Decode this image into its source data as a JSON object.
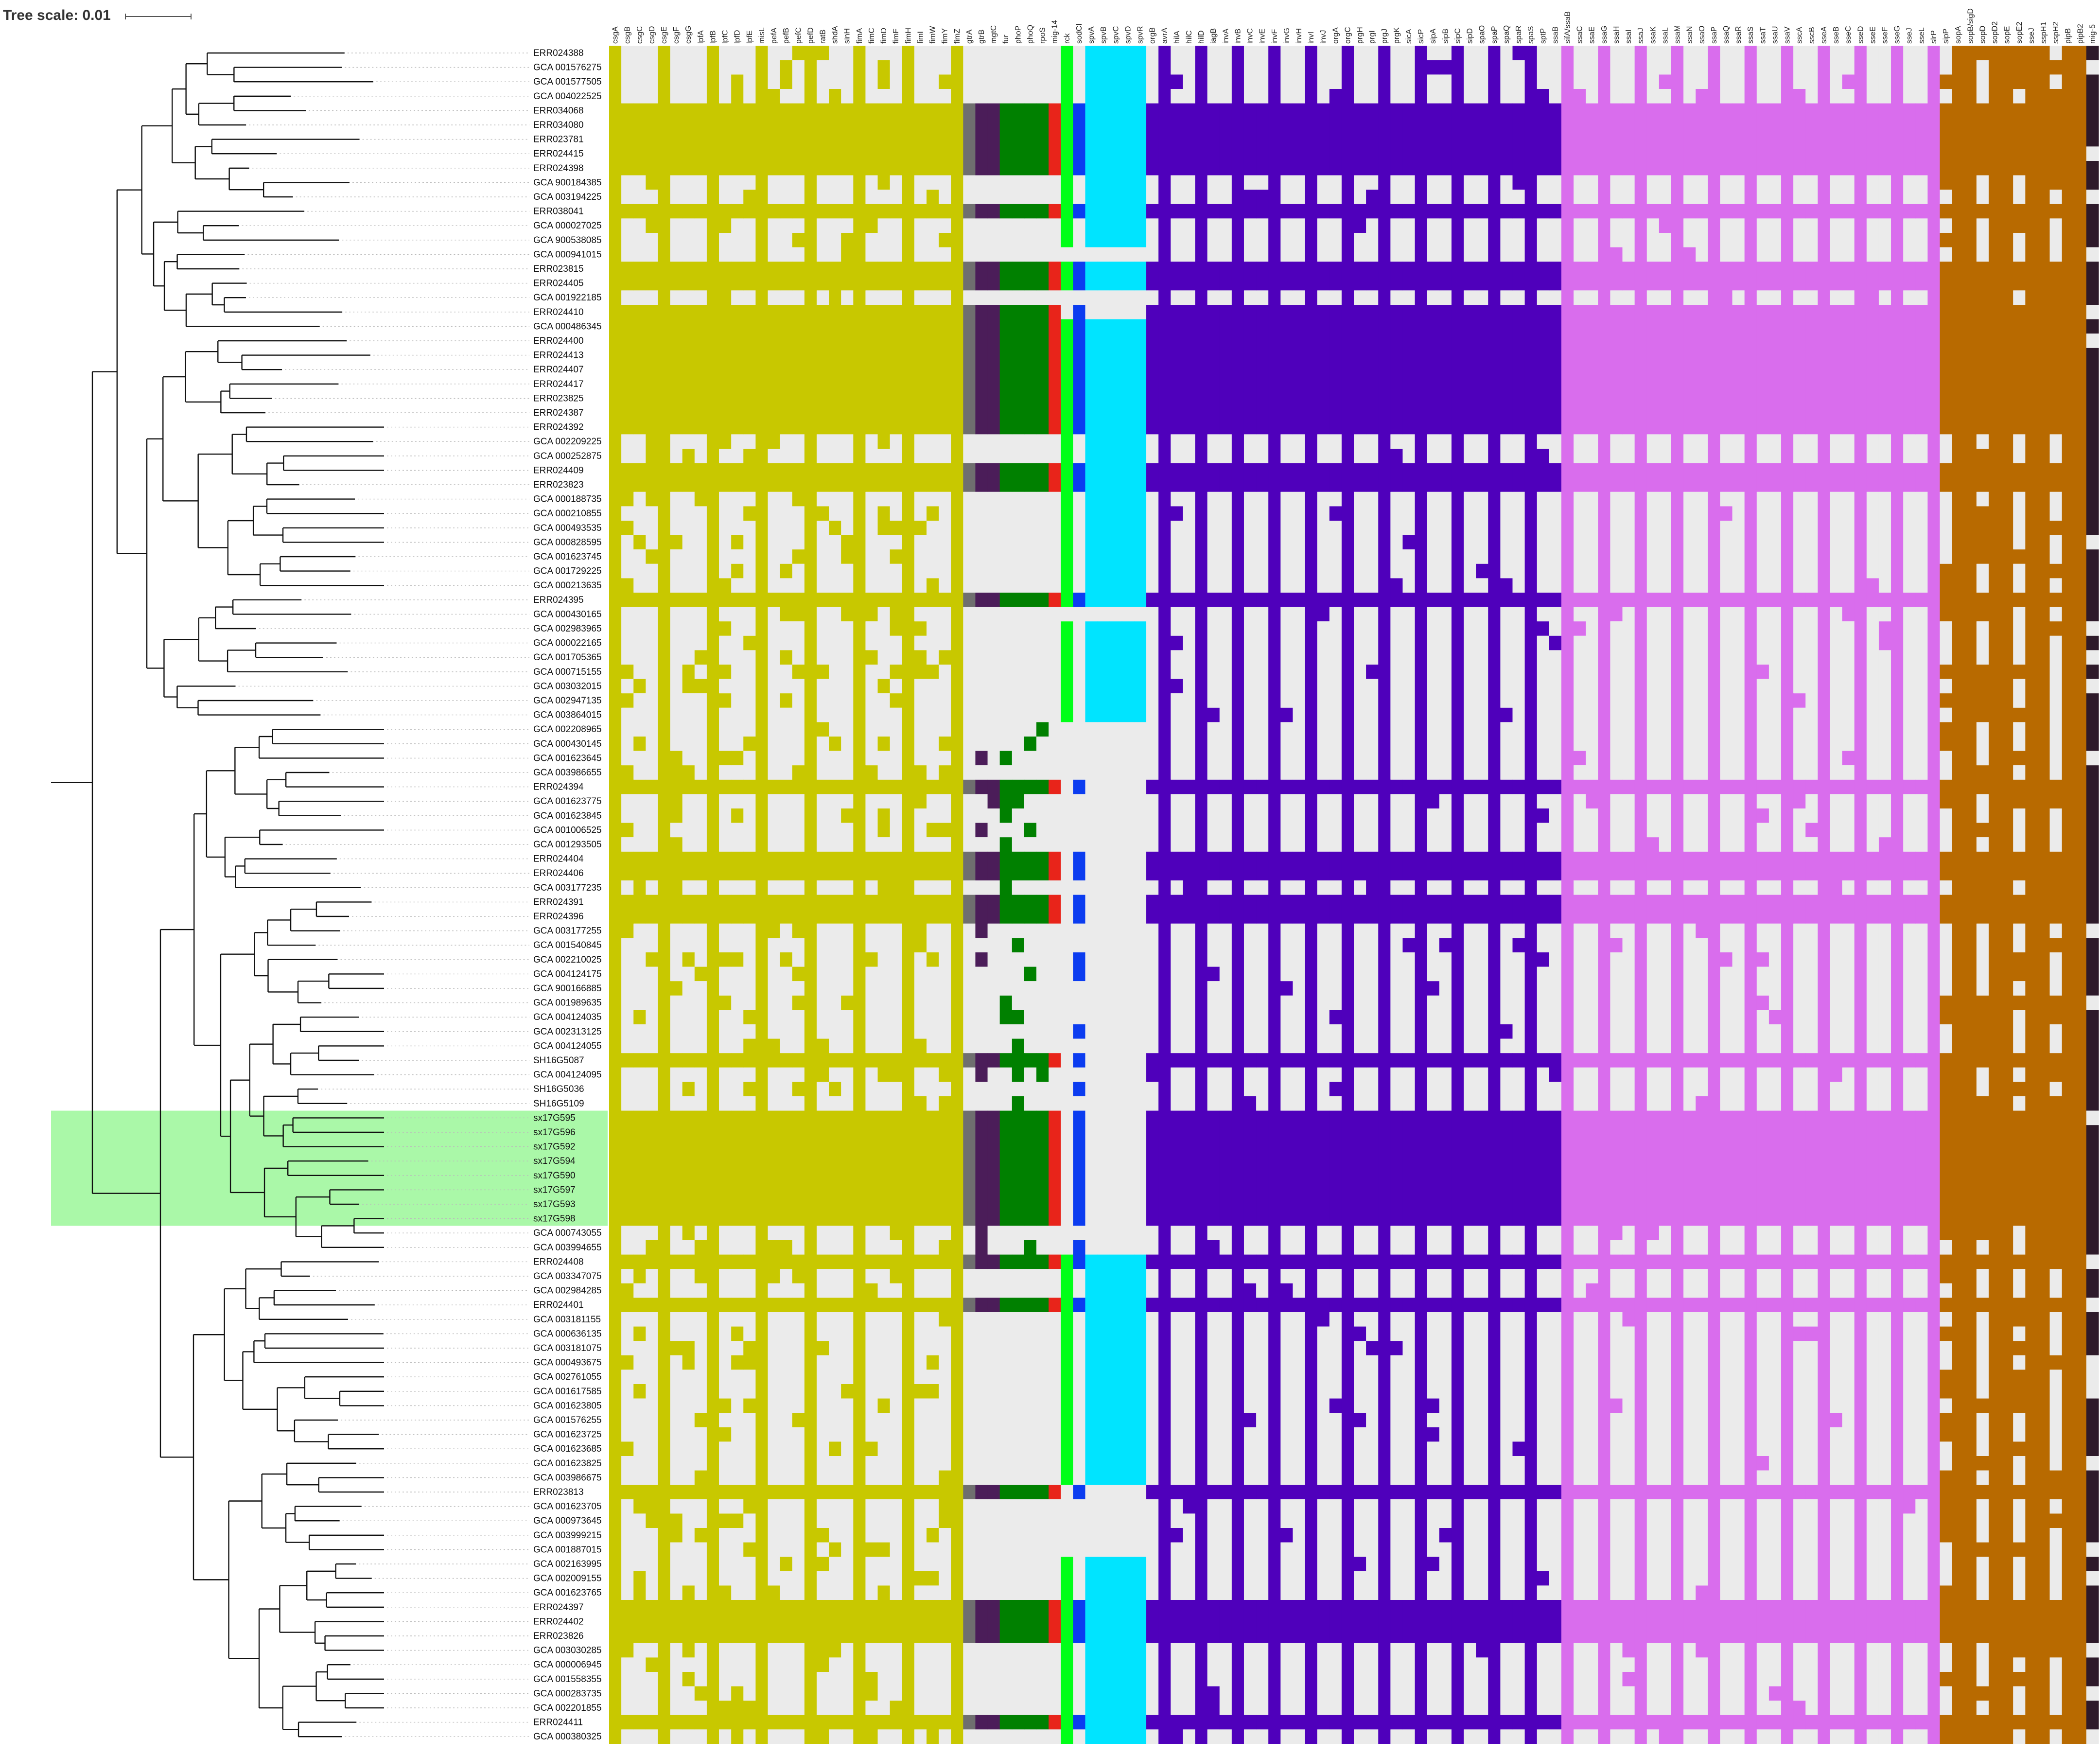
{
  "scale": {
    "label": "Tree scale: 0.01"
  },
  "colors": {
    "absent": "#ebebeb",
    "highlight": "#aaf8a8",
    "tree": "#111111",
    "dotted": "#bbbbbb"
  },
  "taxa": [
    "ERR024388",
    "GCA 001576275",
    "GCA 001577505",
    "GCA 004022525",
    "ERR034068",
    "ERR034080",
    "ERR023781",
    "ERR024415",
    "ERR024398",
    "GCA 900184385",
    "GCA 003194225",
    "ERR038041",
    "GCA 000027025",
    "GCA 900538085",
    "GCA 000941015",
    "ERR023815",
    "ERR024405",
    "GCA 001922185",
    "ERR024410",
    "GCA 000486345",
    "ERR024400",
    "ERR024413",
    "ERR024407",
    "ERR024417",
    "ERR023825",
    "ERR024387",
    "ERR024392",
    "GCA 002209225",
    "GCA 000252875",
    "ERR024409",
    "ERR023823",
    "GCA 000188735",
    "GCA 000210855",
    "GCA 000493535",
    "GCA 000828595",
    "GCA 001623745",
    "GCA 001729225",
    "GCA 000213635",
    "ERR024395",
    "GCA 000430165",
    "GCA 002983965",
    "GCA 000022165",
    "GCA 001705365",
    "GCA 000715155",
    "GCA 003032015",
    "GCA 002947135",
    "GCA 003864015",
    "GCA 002208965",
    "GCA 000430145",
    "GCA 001623645",
    "GCA 003986655",
    "ERR024394",
    "GCA 001623775",
    "GCA 001623845",
    "GCA 001006525",
    "GCA 001293505",
    "ERR024404",
    "ERR024406",
    "GCA 003177235",
    "ERR024391",
    "ERR024396",
    "GCA 003177255",
    "GCA 001540845",
    "GCA 002210025",
    "GCA 004124175",
    "GCA 900166885",
    "GCA 001989635",
    "GCA 004124035",
    "GCA 002313125",
    "GCA 004124055",
    "SH16G5087",
    "GCA 004124095",
    "SH16G5036",
    "SH16G5109",
    "sx17G595",
    "sx17G596",
    "sx17G592",
    "sx17G594",
    "sx17G590",
    "sx17G597",
    "sx17G593",
    "sx17G598",
    "GCA 000743055",
    "GCA 003994655",
    "ERR024408",
    "GCA 003347075",
    "GCA 002984285",
    "ERR024401",
    "GCA 003181155",
    "GCA 000636135",
    "GCA 003181075",
    "GCA 000493675",
    "GCA 002761055",
    "GCA 001617585",
    "GCA 001623805",
    "GCA 001576255",
    "GCA 001623725",
    "GCA 001623685",
    "GCA 001623825",
    "GCA 003986675",
    "ERR023813",
    "GCA 001623705",
    "GCA 000973645",
    "GCA 003999215",
    "GCA 001887015",
    "GCA 002163995",
    "GCA 002009155",
    "GCA 001623765",
    "ERR024397",
    "ERR024402",
    "ERR023826",
    "GCA 003030285",
    "GCA 000006945",
    "GCA 001558355",
    "GCA 000283735",
    "GCA 002201855",
    "ERR024411",
    "GCA 000380325"
  ],
  "highlighted_taxa": [
    "sx17G595",
    "sx17G596",
    "sx17G592",
    "sx17G594",
    "sx17G590",
    "sx17G597",
    "sx17G593",
    "sx17G598"
  ],
  "groups": [
    {
      "color": "#c8c800",
      "genes": [
        "csgA",
        "csgB",
        "csgC",
        "csgD",
        "csgE",
        "csgF",
        "csgG",
        "lpfA",
        "lpfB",
        "lpfC",
        "lpfD",
        "lpfE",
        "misL",
        "pefA",
        "pefB",
        "pefC",
        "pefD",
        "ratB",
        "shdA",
        "sinH",
        "fimA",
        "fimC",
        "fimD",
        "fimF",
        "fimH",
        "fimI",
        "fimW",
        "fimY",
        "fimZ"
      ]
    },
    {
      "color": "#6f6f6f",
      "genes": [
        "gtrA"
      ]
    },
    {
      "color": "#4b1d59",
      "genes": [
        "gtrB",
        "mgtC"
      ]
    },
    {
      "color": "#008000",
      "genes": [
        "fur",
        "phoP",
        "phoQ",
        "rpoS"
      ]
    },
    {
      "color": "#e8241a",
      "genes": [
        "mig-14"
      ]
    },
    {
      "color": "#00ff18",
      "genes": [
        "rck"
      ]
    },
    {
      "color": "#0b3cf0",
      "genes": [
        "sodCI"
      ]
    },
    {
      "color": "#00e4ff",
      "genes": [
        "spvA",
        "spvB",
        "spvC",
        "spvD",
        "spvR"
      ]
    },
    {
      "color": "#4f00bb",
      "genes": [
        "orgB",
        "avrA",
        "hilA",
        "hilC",
        "hilD",
        "iagB",
        "invA",
        "invB",
        "invC",
        "invE",
        "invF",
        "invG",
        "invH",
        "invI",
        "invJ",
        "orgA",
        "orgC",
        "prgH",
        "prgI",
        "prgJ",
        "prgK",
        "sicA",
        "sicP",
        "sipA",
        "sipB",
        "sipC",
        "sipD",
        "spaO",
        "spaP",
        "spaQ",
        "spaR",
        "spaS",
        "sptP",
        "ssaB"
      ]
    },
    {
      "color": "#d96ded",
      "genes": [
        "sifA/ssaB",
        "ssaC",
        "ssaE",
        "ssaG",
        "ssaH",
        "ssaI",
        "ssaJ",
        "ssaK",
        "ssaL",
        "ssaM",
        "ssaN",
        "ssaO",
        "ssaP",
        "ssaQ",
        "ssaR",
        "ssaS",
        "ssaT",
        "ssaU",
        "ssaV",
        "sscA",
        "sscB",
        "sseA",
        "sseB",
        "sseC",
        "sseD",
        "sseE",
        "sseF",
        "sseG",
        "sseJ",
        "sseL",
        "slrP"
      ]
    },
    {
      "color": "#b86a00",
      "genes": [
        "sipP",
        "sopA",
        "sopB/sigD",
        "sopD",
        "sopD2",
        "sopE",
        "sopE2",
        "sseJ",
        "sspH1",
        "sspH2",
        "pipB",
        "pipB2"
      ]
    },
    {
      "color": "#2e1a2a",
      "genes": [
        "mig-5"
      ]
    }
  ],
  "clusters": {
    "A": [
      0,
      1,
      2,
      3,
      4,
      5,
      6,
      7,
      8,
      9,
      10,
      11,
      12,
      13,
      14,
      15,
      16,
      17,
      18,
      19,
      20,
      21,
      22,
      23,
      24,
      25,
      26,
      27,
      28,
      29,
      30,
      31,
      32,
      33,
      34,
      35,
      36,
      37,
      38,
      39,
      40,
      41,
      42,
      43,
      44,
      45,
      46
    ],
    "B": [
      47,
      48,
      49,
      50,
      51,
      52,
      53,
      54,
      55,
      56,
      57,
      58,
      59,
      60,
      61,
      62,
      63,
      64,
      65,
      66,
      67,
      68,
      69,
      70,
      71,
      72,
      73,
      74,
      75,
      76,
      77,
      78,
      79,
      80,
      81,
      82,
      83
    ],
    "C": [
      84,
      85,
      86,
      87,
      88,
      89,
      90,
      91,
      92,
      93,
      94,
      95,
      96,
      97,
      98,
      99,
      100,
      101,
      102,
      103,
      104,
      105,
      106,
      107,
      108,
      109,
      110,
      111,
      112,
      113,
      114,
      115,
      116,
      117
    ]
  },
  "full_rows": [
    4,
    5,
    6,
    7,
    8,
    11,
    15,
    16,
    18,
    19,
    20,
    21,
    22,
    23,
    24,
    25,
    26,
    29,
    30,
    38,
    51,
    56,
    57,
    59,
    60,
    70,
    74,
    75,
    76,
    77,
    78,
    79,
    80,
    81,
    84,
    87,
    100,
    108,
    109,
    110,
    116
  ],
  "spv_rows": [
    0,
    1,
    2,
    3,
    4,
    5,
    6,
    7,
    8,
    9,
    10,
    11,
    12,
    13,
    15,
    16,
    19,
    20,
    21,
    22,
    23,
    24,
    25,
    26,
    27,
    28,
    29,
    30,
    31,
    32,
    33,
    34,
    35,
    36,
    37,
    38,
    40,
    41,
    42,
    43,
    44,
    45,
    46,
    84,
    85,
    86,
    87,
    88,
    89,
    90,
    91,
    92,
    93,
    94,
    95,
    96,
    97,
    98,
    99,
    105,
    106,
    107,
    108,
    109,
    110,
    111,
    112,
    113,
    114,
    115,
    116,
    117
  ]
}
